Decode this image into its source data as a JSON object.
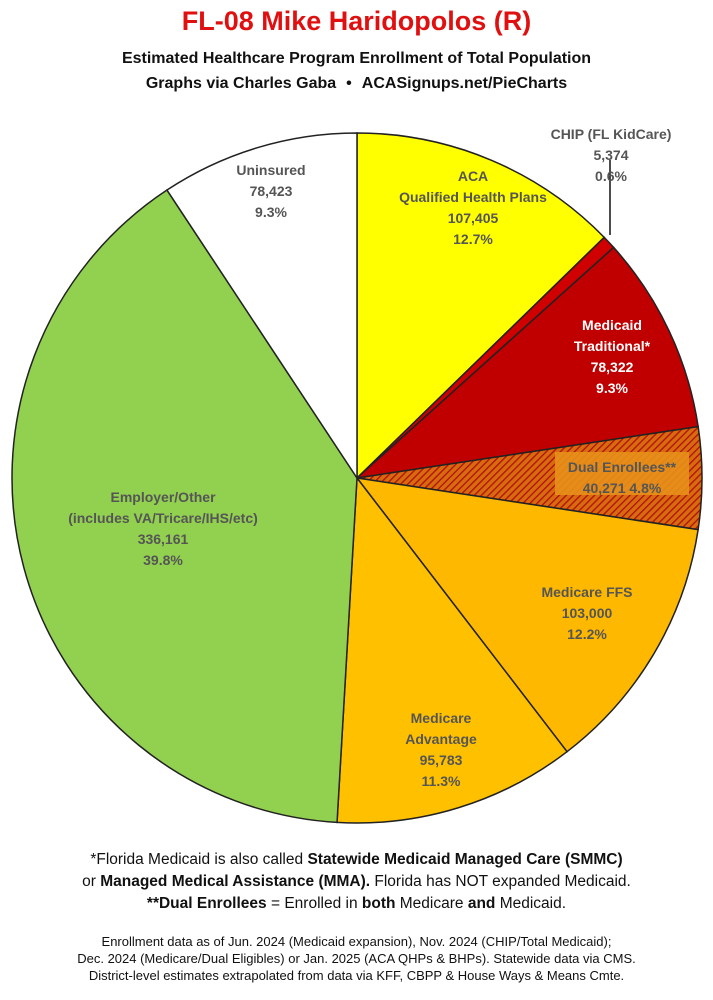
{
  "header": {
    "title": "FL-08 Mike Haridopolos (R)",
    "subtitle": "Estimated Healthcare Program Enrollment of Total Population",
    "credit": "Graphs via Charles Gaba",
    "bullet": "•",
    "url": "ACASignups.net/PieCharts"
  },
  "chart_data": {
    "type": "pie",
    "title": "FL-08 Mike Haridopolos (R)",
    "slices": [
      {
        "label": "ACA",
        "label2": "Qualified Health Plans",
        "value": 107405,
        "value_text": "107,405",
        "pct_text": "12.7%",
        "color": "#ffff00",
        "text_color": "#555555"
      },
      {
        "label": "CHIP (FL KidCare)",
        "value": 5374,
        "value_text": "5,374",
        "pct_text": "0.6%",
        "color": "#d00000",
        "text_color": "#555555"
      },
      {
        "label": "Medicaid",
        "label2": "Traditional*",
        "value": 78322,
        "value_text": "78,322",
        "pct_text": "9.3%",
        "color": "#c00000",
        "text_color": "#ffffff"
      },
      {
        "label": "Dual Enrollees**",
        "value": 40271,
        "value_text": "40,271",
        "pct_text": "4.8%",
        "color": "#d24a1a",
        "text_color": "#555555",
        "hatched": true
      },
      {
        "label": "Medicare FFS",
        "value": 103000,
        "value_text": "103,000",
        "pct_text": "12.2%",
        "color": "#ffb800",
        "text_color": "#555555"
      },
      {
        "label": "Medicare",
        "label2": "Advantage",
        "value": 95783,
        "value_text": "95,783",
        "pct_text": "11.3%",
        "color": "#ffc000",
        "text_color": "#555555"
      },
      {
        "label": "Employer/Other",
        "label2": "(includes VA/Tricare/IHS/etc)",
        "value": 336161,
        "value_text": "336,161",
        "pct_text": "39.8%",
        "color": "#92d050",
        "text_color": "#555555"
      },
      {
        "label": "Uninsured",
        "value": 78423,
        "value_text": "78,423",
        "pct_text": "9.3%",
        "color": "#ffffff",
        "text_color": "#555555"
      }
    ]
  },
  "notes": {
    "line1_a": "*Florida Medicaid is also called ",
    "line1_b": "Statewide Medicaid Managed Care (SMMC)",
    "line2_a": "or ",
    "line2_b": "Managed Medical Assistance (MMA).",
    "line2_c": " Florida has NOT expanded Medicaid.",
    "line3_a": "**Dual Enrollees",
    "line3_b": " = Enrolled in ",
    "line3_c": "both",
    "line3_d": " Medicare ",
    "line3_e": "and",
    "line3_f": " Medicaid."
  },
  "sources": {
    "line1": "Enrollment data as of Jun. 2024 (Medicaid expansion), Nov. 2024 (CHIP/Total Medicaid);",
    "line2": "Dec. 2024 (Medicare/Dual Eligibles) or Jan. 2025 (ACA QHPs & BHPs). Statewide data via CMS.",
    "line3": "District-level estimates extrapolated from data via KFF, CBPP & House Ways & Means Cmte."
  }
}
